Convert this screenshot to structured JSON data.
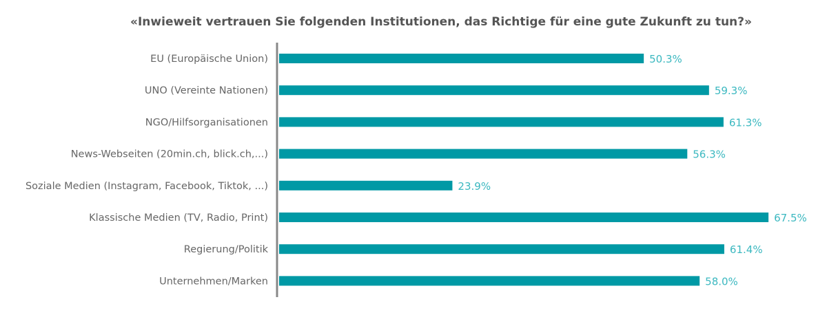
{
  "chart_data": {
    "type": "bar",
    "orientation": "horizontal",
    "title": "«Inwieweit vertrauen Sie folgenden Institutionen, das Richtige für eine gute Zukunft zu tun?»",
    "categories": [
      "EU (Europäische Union)",
      "UNO (Vereinte Nationen)",
      "NGO/Hilfsorganisationen",
      "News-Webseiten (20min.ch, blick.ch,...)",
      "Soziale Medien (Instagram, Facebook, Tiktok, ...)",
      "Klassische Medien (TV, Radio, Print)",
      "Regierung/Politik",
      "Unternehmen/Marken"
    ],
    "values": [
      50.3,
      59.3,
      61.3,
      56.3,
      23.9,
      67.5,
      61.4,
      58.0
    ],
    "value_labels": [
      "50.3%",
      "59.3%",
      "61.3%",
      "56.3%",
      "23.9%",
      "67.5%",
      "61.4%",
      "58.0%"
    ],
    "xlim": [
      0,
      100
    ],
    "grid": false,
    "colors": {
      "bar": "#0099a5",
      "label": "#3bb8c0",
      "axis": "#888888"
    }
  }
}
